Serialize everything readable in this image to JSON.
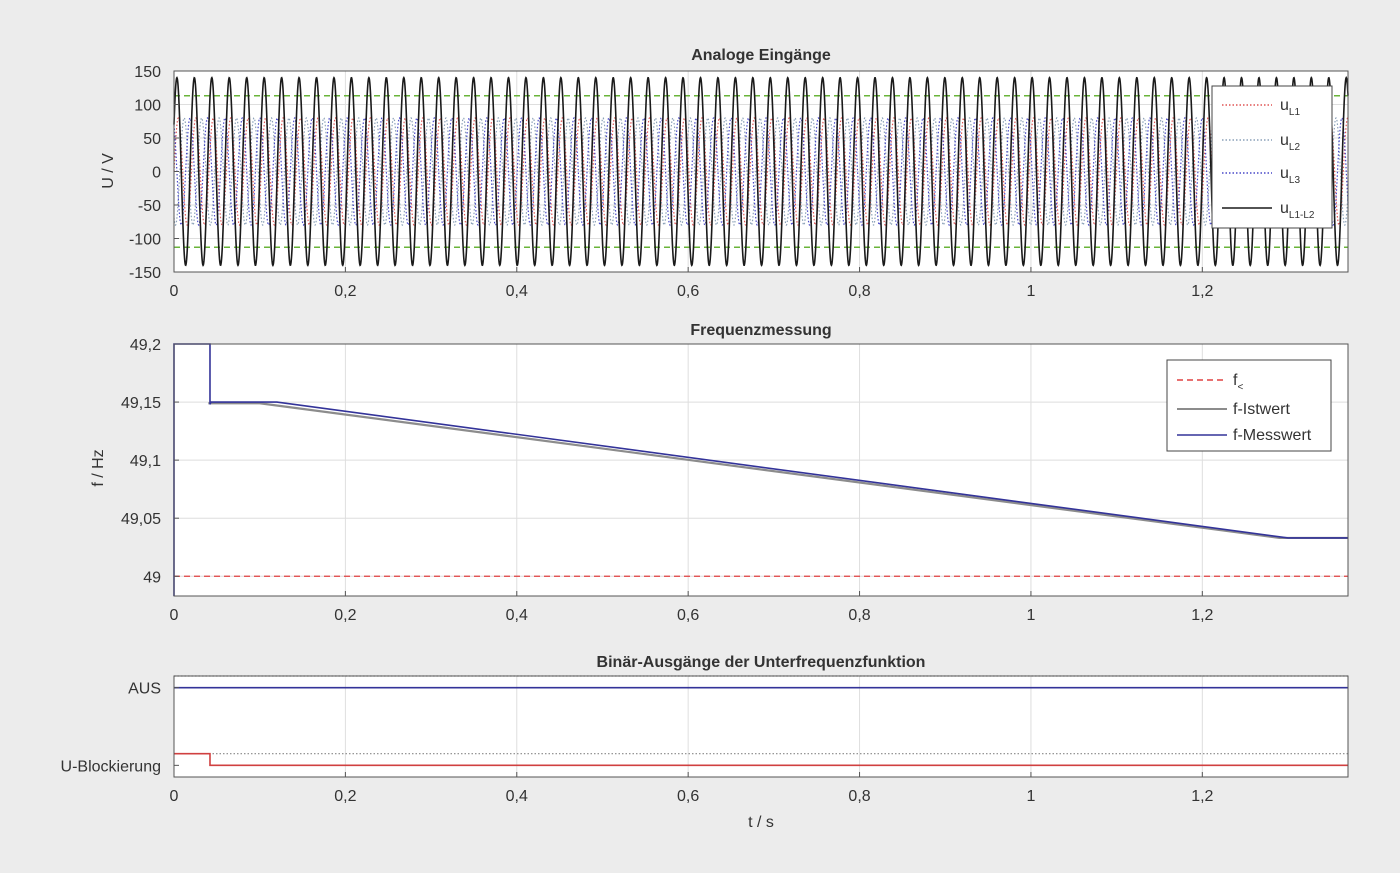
{
  "chart_data": [
    {
      "type": "line",
      "title": "Analoge Eingänge",
      "xlabel": "",
      "ylabel": "U / V",
      "xlim": [
        0,
        1.37
      ],
      "ylim": [
        -150,
        150
      ],
      "xticks": [
        0,
        0.2,
        0.4,
        0.6,
        0.8,
        1,
        1.2
      ],
      "xtick_labels": [
        "0",
        "0,2",
        "0,4",
        "0,6",
        "0,8",
        "1",
        "1,2"
      ],
      "yticks": [
        150,
        100,
        50,
        0,
        -50,
        -100,
        -150
      ],
      "ytick_labels": [
        "150",
        "100",
        "50",
        "0",
        "-50",
        "-100",
        "-150"
      ],
      "grid": true,
      "legend_position": "top-right",
      "frequency_hz": 49.1,
      "series": [
        {
          "name": "u",
          "subscript": "L1",
          "amplitude": 80,
          "phase_deg": 0,
          "style": "dotted",
          "color": "#e05555"
        },
        {
          "name": "u",
          "subscript": "L2",
          "amplitude": 80,
          "phase_deg": -120,
          "style": "dotted",
          "color": "#8aa0b8"
        },
        {
          "name": "u",
          "subscript": "L3",
          "amplitude": 80,
          "phase_deg": 120,
          "style": "dotted",
          "color": "#4848c8"
        },
        {
          "name": "u",
          "subscript": "L1-L2",
          "amplitude": 140,
          "phase_deg": 30,
          "style": "solid",
          "color": "#1a1a1a"
        }
      ],
      "threshold_lines": [
        {
          "y": 113,
          "style": "dashed",
          "color": "#6ab43a"
        },
        {
          "y": -113,
          "style": "dashed",
          "color": "#6ab43a"
        }
      ]
    },
    {
      "type": "line",
      "title": "Frequenzmessung",
      "xlabel": "",
      "ylabel": "f / Hz",
      "xlim": [
        0,
        1.37
      ],
      "ylim": [
        48.983,
        49.2
      ],
      "xticks": [
        0,
        0.2,
        0.4,
        0.6,
        0.8,
        1,
        1.2
      ],
      "xtick_labels": [
        "0",
        "0,2",
        "0,4",
        "0,6",
        "0,8",
        "1",
        "1,2"
      ],
      "yticks": [
        49.2,
        49.15,
        49.1,
        49.05,
        49
      ],
      "ytick_labels": [
        "49,2",
        "49,15",
        "49,1",
        "49,05",
        "49"
      ],
      "grid": true,
      "legend_position": "top-right",
      "series": [
        {
          "name": "f",
          "subscript": "<",
          "style": "dashed",
          "color": "#e04040",
          "x": [
            0,
            1.37
          ],
          "y": [
            49.0,
            49.0
          ]
        },
        {
          "name": "f-Istwert",
          "style": "solid",
          "color": "#8c8c8c",
          "x": [
            0.04,
            0.1,
            1.29,
            1.37
          ],
          "y": [
            49.149,
            49.149,
            49.033,
            49.033
          ]
        },
        {
          "name": "f-Messwert",
          "style": "solid",
          "color": "#333399",
          "x": [
            0,
            0,
            0,
            0.042,
            0.042,
            0.043,
            0.12,
            1.3,
            1.37
          ],
          "y": [
            48.983,
            49.2,
            49.2,
            49.2,
            49.148,
            49.15,
            49.15,
            49.033,
            49.033
          ]
        }
      ]
    },
    {
      "type": "line",
      "title": "Binär-Ausgänge der Unterfrequenzfunktion",
      "xlabel": "t / s",
      "ylabel": "",
      "xlim": [
        0,
        1.37
      ],
      "ylim": [
        -0.3,
        2.3
      ],
      "xticks": [
        0,
        0.2,
        0.4,
        0.6,
        0.8,
        1,
        1.2
      ],
      "xtick_labels": [
        "0",
        "0,2",
        "0,4",
        "0,6",
        "0,8",
        "1",
        "1,2"
      ],
      "yticks": [
        2,
        0
      ],
      "ytick_labels": [
        "AUS",
        "U-Blockierung"
      ],
      "grid": true,
      "series": [
        {
          "name": "AUS",
          "style": "solid",
          "color": "#333399",
          "x": [
            0,
            1.37
          ],
          "y": [
            2,
            2
          ]
        },
        {
          "name": "U-Blockierung",
          "style": "solid",
          "color": "#d04040",
          "x": [
            0,
            0.042,
            0.042,
            1.37
          ],
          "y": [
            0.3,
            0.3,
            0,
            0
          ]
        }
      ],
      "level_lines": [
        {
          "y": 2.3,
          "style": "dotted",
          "color": "#888888"
        },
        {
          "y": 0.3,
          "style": "dotted",
          "color": "#888888"
        }
      ]
    }
  ]
}
